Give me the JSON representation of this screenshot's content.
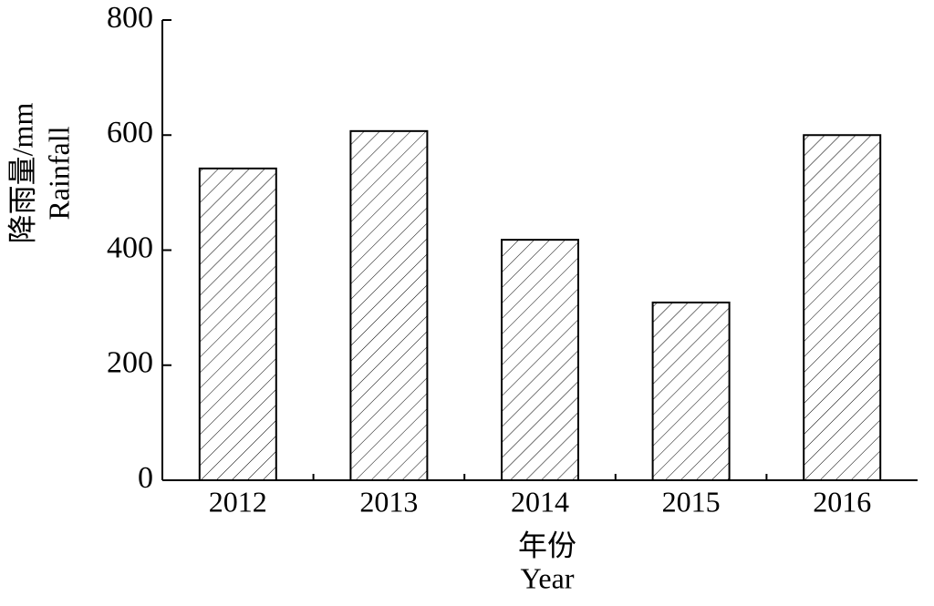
{
  "chart_data": {
    "type": "bar",
    "categories": [
      "2012",
      "2013",
      "2014",
      "2015",
      "2016"
    ],
    "values": [
      542,
      607,
      418,
      309,
      600
    ],
    "color": "#000000",
    "ylim": [
      0,
      800
    ],
    "yticks": [
      0,
      200,
      400,
      600,
      800
    ],
    "xlabel": [
      "年份",
      "Year"
    ],
    "ylabel": [
      "降雨量/mm",
      "Rainfall"
    ]
  }
}
